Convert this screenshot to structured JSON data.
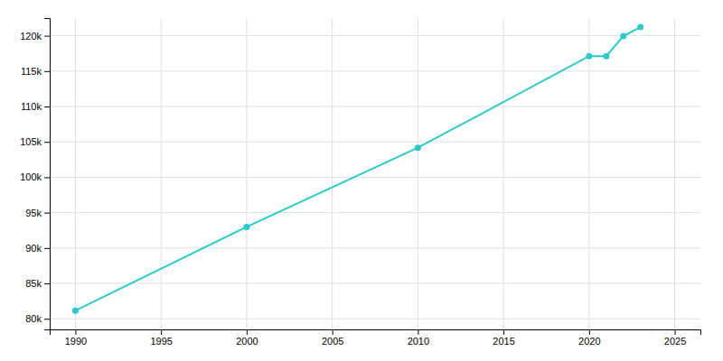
{
  "chart_data": {
    "type": "line",
    "x": [
      1990,
      2000,
      2010,
      2020,
      2021,
      2022,
      2023
    ],
    "values": [
      81151,
      92988,
      104170,
      117116,
      117116,
      119944,
      121229
    ],
    "color": "#2ec8c8",
    "marker": "circle",
    "xlim": [
      1988.5,
      2026.5
    ],
    "ylim": [
      78500,
      122500
    ],
    "xticks": [
      1990,
      1995,
      2000,
      2005,
      2010,
      2015,
      2020,
      2025
    ],
    "yticks": [
      {
        "value": 80000,
        "label": "80k"
      },
      {
        "value": 85000,
        "label": "85k"
      },
      {
        "value": 90000,
        "label": "90k"
      },
      {
        "value": 95000,
        "label": "95k"
      },
      {
        "value": 100000,
        "label": "100k"
      },
      {
        "value": 105000,
        "label": "105k"
      },
      {
        "value": 110000,
        "label": "110k"
      },
      {
        "value": 115000,
        "label": "115k"
      },
      {
        "value": 120000,
        "label": "120k"
      }
    ],
    "grid": true
  }
}
